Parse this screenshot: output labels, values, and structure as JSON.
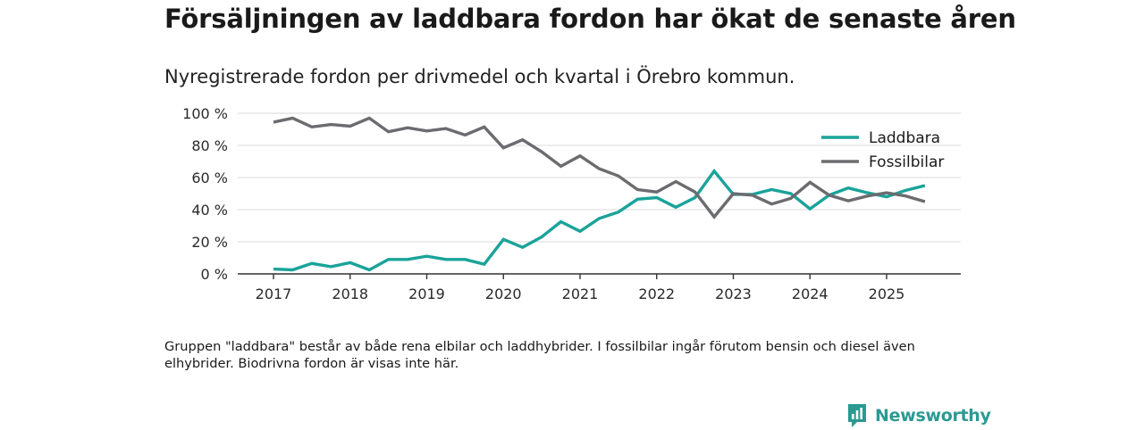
{
  "header": {
    "title": "Försäljningen av laddbara fordon har ökat de senaste åren",
    "subtitle": "Nyregistrerade fordon per drivmedel och kvartal i Örebro kommun."
  },
  "note": "Gruppen \"laddbara\" består av både rena elbilar och laddhybrider. I fossilbilar ingår förutom bensin och diesel även elhybrider. Biodrivna fordon är visas inte här.",
  "brand": {
    "name": "Newsworthy",
    "icon": "newsworthy-logo-icon",
    "color": "#2a9a93"
  },
  "chart_data": {
    "type": "line",
    "title": "Försäljningen av laddbara fordon har ökat de senaste åren",
    "subtitle": "Nyregistrerade fordon per drivmedel och kvartal i Örebro kommun.",
    "xlabel": "",
    "ylabel": "",
    "ylim": [
      0,
      100
    ],
    "yticks": [
      0,
      20,
      40,
      60,
      80,
      100
    ],
    "ytick_labels": [
      "0 %",
      "20 %",
      "40 %",
      "60 %",
      "80 %",
      "100 %"
    ],
    "xticks": [
      2017,
      2018,
      2019,
      2020,
      2021,
      2022,
      2023,
      2024,
      2025
    ],
    "xtick_labels": [
      "2017",
      "2018",
      "2019",
      "2020",
      "2021",
      "2022",
      "2023",
      "2024",
      "2025"
    ],
    "x": [
      2017.0,
      2017.25,
      2017.5,
      2017.75,
      2018.0,
      2018.25,
      2018.5,
      2018.75,
      2019.0,
      2019.25,
      2019.5,
      2019.75,
      2020.0,
      2020.25,
      2020.5,
      2020.75,
      2021.0,
      2021.25,
      2021.5,
      2021.75,
      2022.0,
      2022.25,
      2022.5,
      2022.75,
      2023.0,
      2023.25,
      2023.5,
      2023.75,
      2024.0,
      2024.25,
      2024.5,
      2024.75,
      2025.0,
      2025.25,
      2025.5
    ],
    "grid": true,
    "legend_position": "top-right",
    "series": [
      {
        "name": "Laddbara",
        "color": "#1aa39a",
        "values": [
          3,
          2.5,
          6.5,
          4.5,
          7,
          2.5,
          9,
          9,
          11,
          9,
          9,
          6,
          21.5,
          16.5,
          23,
          32.5,
          26.5,
          34.5,
          38.5,
          46.5,
          47.5,
          41.5,
          47.5,
          64,
          49.5,
          49.5,
          52.5,
          50,
          40.5,
          49,
          53.5,
          50.5,
          48,
          52,
          55
        ]
      },
      {
        "name": "Fossilbilar",
        "color": "#6b6b70",
        "values": [
          94.5,
          97,
          91.5,
          93,
          92,
          97,
          88.5,
          91,
          89,
          90.5,
          86.5,
          91.5,
          78.5,
          83.5,
          76,
          67,
          73.5,
          65.5,
          61,
          52.5,
          51,
          57.5,
          51,
          35.5,
          50,
          49,
          43.5,
          47,
          57,
          49,
          45.5,
          48.5,
          50.5,
          48.5,
          45
        ]
      }
    ]
  }
}
